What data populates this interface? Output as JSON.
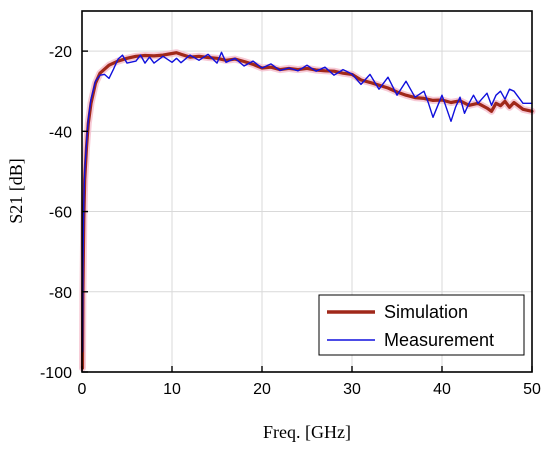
{
  "chart_data": {
    "type": "line",
    "xlabel": "Freq. [GHz]",
    "ylabel": "S21 [dB]",
    "xlim": [
      0,
      50
    ],
    "ylim": [
      -100,
      -10
    ],
    "xticks": [
      0,
      10,
      20,
      30,
      40,
      50
    ],
    "yticks": [
      -100,
      -80,
      -60,
      -40,
      -20
    ],
    "grid": true,
    "legend_position": "bottom-right",
    "series": [
      {
        "name": "Simulation",
        "color": "#a0281a",
        "x": [
          0.05,
          0.1,
          0.2,
          0.3,
          0.5,
          0.7,
          1,
          1.5,
          2,
          3,
          4,
          5,
          6,
          7,
          8,
          9,
          10,
          10.5,
          11,
          12,
          13,
          14,
          15,
          16,
          17,
          18,
          19,
          20,
          21,
          22,
          23,
          24,
          25,
          26,
          27,
          28,
          29,
          30,
          31,
          32,
          33,
          34,
          35,
          36,
          37,
          38,
          39,
          40,
          41,
          42,
          43,
          44,
          45,
          45.5,
          46,
          46.5,
          47,
          47.5,
          48,
          49,
          50
        ],
        "y": [
          -99,
          -80,
          -62,
          -52,
          -44,
          -38,
          -33,
          -28,
          -25.5,
          -23.5,
          -22.5,
          -21.8,
          -21.3,
          -21.1,
          -21.2,
          -21.0,
          -20.6,
          -20.4,
          -20.8,
          -21.5,
          -21.3,
          -21.6,
          -21.8,
          -22.3,
          -22.0,
          -22.6,
          -23.3,
          -24.2,
          -24.0,
          -24.6,
          -24.3,
          -24.6,
          -24.3,
          -24.7,
          -24.9,
          -25.0,
          -25.5,
          -25.8,
          -27.2,
          -27.8,
          -28.5,
          -29.2,
          -30.2,
          -31.0,
          -31.6,
          -31.8,
          -32.3,
          -32.2,
          -32.8,
          -32.4,
          -33.5,
          -33.0,
          -34.2,
          -35.0,
          -33.0,
          -33.6,
          -32.5,
          -34.0,
          -32.8,
          -34.5,
          -35.0
        ]
      },
      {
        "name": "Measurement",
        "color": "#1010dd",
        "x": [
          0.05,
          0.1,
          0.2,
          0.3,
          0.5,
          0.7,
          1,
          1.5,
          2,
          2.5,
          3,
          3.5,
          4,
          4.5,
          5,
          6,
          6.5,
          7,
          7.5,
          8,
          9,
          10,
          10.5,
          11,
          12,
          13,
          14,
          15,
          15.5,
          16,
          17,
          18,
          19,
          20,
          21,
          22,
          23,
          24,
          25,
          26,
          27,
          28,
          29,
          30,
          31,
          32,
          33,
          34,
          35,
          36,
          37,
          38,
          38.5,
          39,
          40,
          41,
          41.5,
          42,
          42.5,
          43,
          43.5,
          44,
          45,
          45.5,
          46,
          46.5,
          47,
          47.5,
          48,
          49,
          50
        ],
        "y": [
          -95,
          -74,
          -58,
          -50,
          -43,
          -37,
          -32,
          -27.5,
          -26,
          -25.8,
          -26.8,
          -24.5,
          -22.0,
          -21.0,
          -23.0,
          -22.5,
          -21.0,
          -23.0,
          -21.5,
          -23.0,
          -21.3,
          -22.8,
          -21.8,
          -22.9,
          -21.0,
          -22.3,
          -20.8,
          -23.0,
          -20.3,
          -22.8,
          -21.8,
          -23.7,
          -22.5,
          -24.2,
          -23.2,
          -24.8,
          -24.2,
          -24.9,
          -23.5,
          -25.0,
          -24.0,
          -26.0,
          -24.6,
          -25.7,
          -28.3,
          -25.8,
          -29.5,
          -26.5,
          -31.0,
          -27.5,
          -31.5,
          -30.0,
          -33.0,
          -36.5,
          -31.0,
          -37.5,
          -34.0,
          -31.5,
          -35.5,
          -33.0,
          -31.0,
          -33.0,
          -30.5,
          -33.5,
          -31.0,
          -30.0,
          -32.0,
          -29.5,
          -30.0,
          -33.0,
          -33.0
        ]
      }
    ]
  }
}
